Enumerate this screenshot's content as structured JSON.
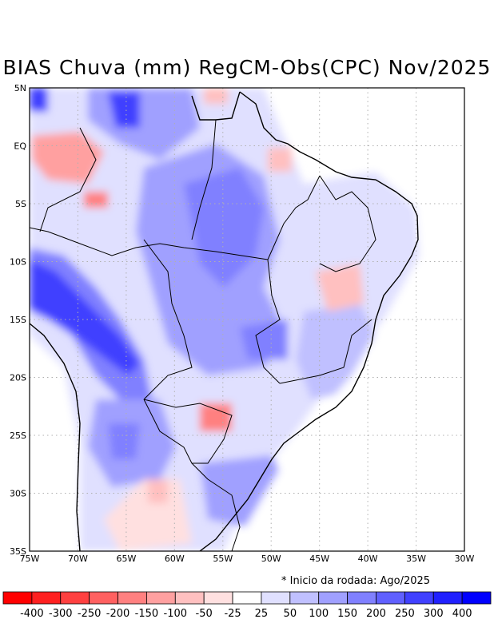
{
  "title": "BIAS Chuva (mm) RegCM-Obs(CPC) Nov/2025",
  "note": "* Inicio da rodada: Ago/2025",
  "axes": {
    "lon_ticks": [
      "75W",
      "70W",
      "65W",
      "60W",
      "55W",
      "50W",
      "45W",
      "40W",
      "35W",
      "30W"
    ],
    "lat_ticks": [
      "5N",
      "EQ",
      "5S",
      "10S",
      "15S",
      "20S",
      "25S",
      "30S",
      "35S"
    ]
  },
  "colorbar": {
    "colors": [
      "#ff0000",
      "#ff2020",
      "#ff4040",
      "#ff6060",
      "#ff8080",
      "#ffa0a0",
      "#ffc0c0",
      "#ffe0e0",
      "#ffffff",
      "#e0e0ff",
      "#c0c0ff",
      "#a0a0ff",
      "#8080ff",
      "#6060ff",
      "#4040ff",
      "#2020ff",
      "#0000ff"
    ],
    "labels": [
      "-400",
      "-300",
      "-250",
      "-200",
      "-150",
      "-100",
      "-50",
      "-25",
      "25",
      "50",
      "100",
      "150",
      "200",
      "250",
      "300",
      "400"
    ]
  },
  "bias_regions": [
    {
      "name": "amazon-north-blue",
      "color": "#8080ff"
    },
    {
      "name": "andes-blue",
      "color": "#4040ff"
    },
    {
      "name": "central-brazil-blue",
      "color": "#a0a0ff"
    },
    {
      "name": "colombia-red",
      "color": "#ffa0a0"
    },
    {
      "name": "paraguay-red",
      "color": "#ffa0a0"
    },
    {
      "name": "northeast-red",
      "color": "#ffc0c0"
    }
  ]
}
